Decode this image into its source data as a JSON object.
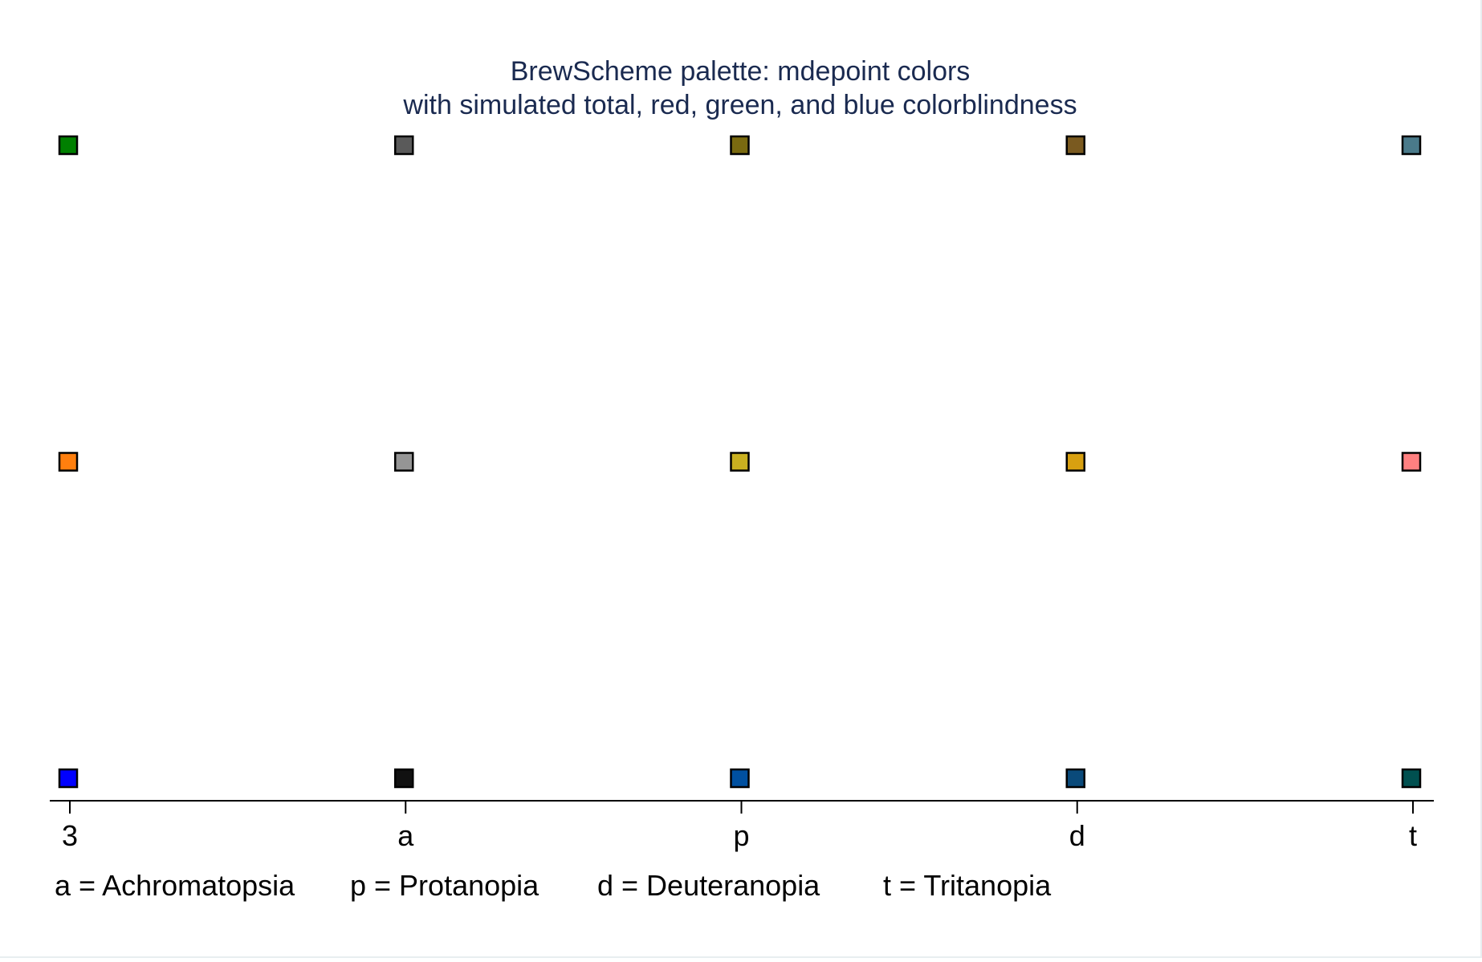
{
  "chart_data": {
    "type": "scatter",
    "title": "BrewScheme palette: mdepoint colors",
    "subtitle": "with simulated total, red, green, and blue colorblindness",
    "title_color": "#1a2a50",
    "categories": [
      "3",
      "a",
      "p",
      "d",
      "t"
    ],
    "rows": [
      1,
      2,
      3
    ],
    "marker": "square",
    "grid": false,
    "series": [
      {
        "values": [
          3,
          3,
          3,
          3,
          3
        ],
        "colors": [
          "#008000",
          "#5a5a5a",
          "#7a6a10",
          "#7a5a20",
          "#4a7a8a"
        ]
      },
      {
        "values": [
          2,
          2,
          2,
          2,
          2
        ],
        "colors": [
          "#ff7f0e",
          "#959595",
          "#c9b020",
          "#d8a010",
          "#ff8080"
        ]
      },
      {
        "values": [
          1,
          1,
          1,
          1,
          1
        ],
        "colors": [
          "#0000ff",
          "#111111",
          "#0050a0",
          "#0a4a7a",
          "#005050"
        ]
      }
    ],
    "note": [
      "a = Achromatopsia",
      "p = Protanopia",
      "d = Deuteranopia",
      "t = Tritanopia"
    ]
  }
}
